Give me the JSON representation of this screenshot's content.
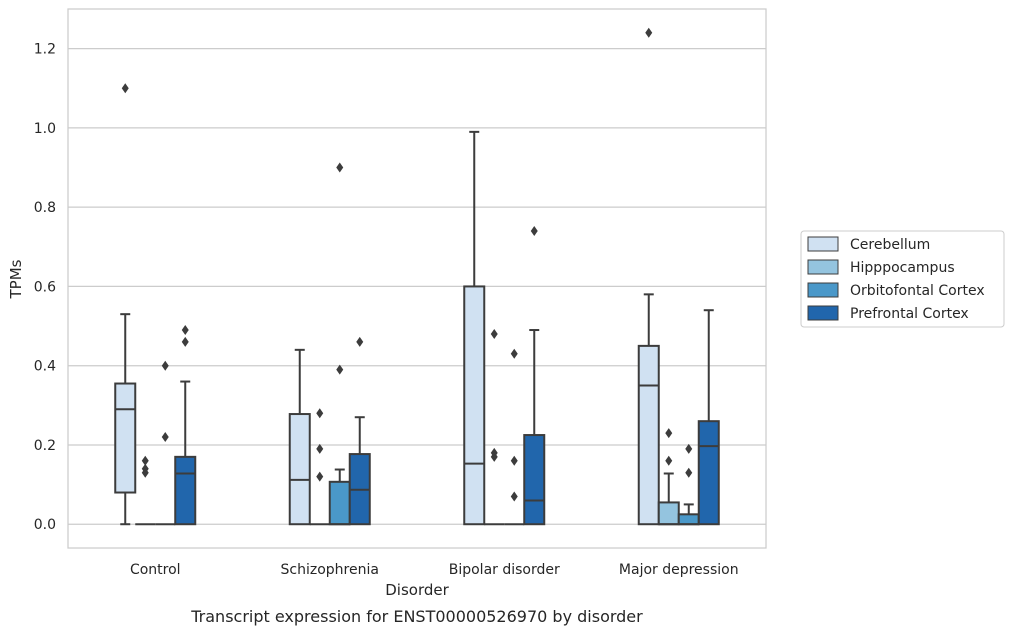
{
  "chart_data": {
    "type": "box",
    "caption": "Transcript expression for ENST00000526970 by disorder",
    "xlabel": "Disorder",
    "ylabel": "TPMs",
    "ylim": [
      -0.06,
      1.3
    ],
    "yticks": [
      0.0,
      0.2,
      0.4,
      0.6,
      0.8,
      1.0,
      1.2
    ],
    "ytick_labels": [
      "0.0",
      "0.2",
      "0.4",
      "0.6",
      "0.8",
      "1.0",
      "1.2"
    ],
    "grid": "horizontal",
    "legend_position": "right-outside",
    "categories": [
      "Control",
      "Schizophrenia",
      "Bipolar disorder",
      "Major depression"
    ],
    "series": [
      {
        "name": "Cerebellum",
        "color": "#d0e1f2",
        "boxes": [
          {
            "q1": 0.08,
            "median": 0.29,
            "q3": 0.355,
            "whisker_low": 0.0,
            "whisker_high": 0.53,
            "outliers": [
              1.1
            ]
          },
          {
            "q1": 0.0,
            "median": 0.112,
            "q3": 0.278,
            "whisker_low": 0.0,
            "whisker_high": 0.44,
            "outliers": []
          },
          {
            "q1": 0.0,
            "median": 0.153,
            "q3": 0.6,
            "whisker_low": 0.0,
            "whisker_high": 0.99,
            "outliers": []
          },
          {
            "q1": 0.0,
            "median": 0.35,
            "q3": 0.45,
            "whisker_low": 0.0,
            "whisker_high": 0.58,
            "outliers": [
              1.24
            ]
          }
        ]
      },
      {
        "name": "Hipppocampus",
        "color": "#94c4df",
        "boxes": [
          {
            "q1": 0.0,
            "median": 0.0,
            "q3": 0.0,
            "whisker_low": 0.0,
            "whisker_high": 0.0,
            "outliers": [
              0.13,
              0.14,
              0.16
            ]
          },
          {
            "q1": 0.0,
            "median": 0.0,
            "q3": 0.0,
            "whisker_low": 0.0,
            "whisker_high": 0.0,
            "outliers": [
              0.12,
              0.19,
              0.28
            ]
          },
          {
            "q1": 0.0,
            "median": 0.0,
            "q3": 0.0,
            "whisker_low": 0.0,
            "whisker_high": 0.0,
            "outliers": [
              0.17,
              0.18,
              0.48
            ]
          },
          {
            "q1": 0.0,
            "median": 0.0,
            "q3": 0.055,
            "whisker_low": 0.0,
            "whisker_high": 0.128,
            "outliers": [
              0.16,
              0.23
            ]
          }
        ]
      },
      {
        "name": "Orbitofontal Cortex",
        "color": "#4a98c9",
        "boxes": [
          {
            "q1": 0.0,
            "median": 0.0,
            "q3": 0.0,
            "whisker_low": 0.0,
            "whisker_high": 0.0,
            "outliers": [
              0.22,
              0.4
            ]
          },
          {
            "q1": 0.0,
            "median": 0.0,
            "q3": 0.107,
            "whisker_low": 0.0,
            "whisker_high": 0.138,
            "outliers": [
              0.39,
              0.9
            ]
          },
          {
            "q1": 0.0,
            "median": 0.0,
            "q3": 0.0,
            "whisker_low": 0.0,
            "whisker_high": 0.0,
            "outliers": [
              0.07,
              0.16,
              0.43
            ]
          },
          {
            "q1": 0.0,
            "median": 0.0,
            "q3": 0.025,
            "whisker_low": 0.0,
            "whisker_high": 0.05,
            "outliers": [
              0.13,
              0.19
            ]
          }
        ]
      },
      {
        "name": "Prefrontal Cortex",
        "color": "#2166ac",
        "boxes": [
          {
            "q1": 0.0,
            "median": 0.128,
            "q3": 0.17,
            "whisker_low": 0.0,
            "whisker_high": 0.36,
            "outliers": [
              0.46,
              0.49
            ]
          },
          {
            "q1": 0.0,
            "median": 0.087,
            "q3": 0.177,
            "whisker_low": 0.0,
            "whisker_high": 0.27,
            "outliers": [
              0.46
            ]
          },
          {
            "q1": 0.0,
            "median": 0.06,
            "q3": 0.225,
            "whisker_low": 0.0,
            "whisker_high": 0.49,
            "outliers": [
              0.74
            ]
          },
          {
            "q1": 0.0,
            "median": 0.197,
            "q3": 0.26,
            "whisker_low": 0.0,
            "whisker_high": 0.54,
            "outliers": []
          }
        ]
      }
    ]
  }
}
